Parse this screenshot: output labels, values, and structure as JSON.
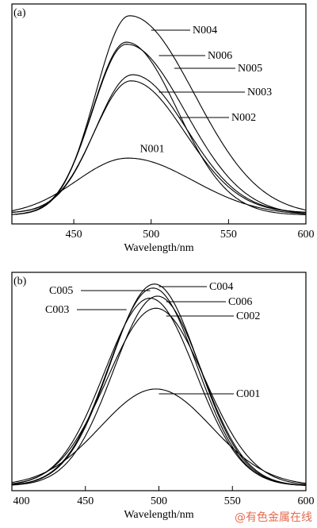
{
  "chart_data": [
    {
      "type": "line",
      "panel_label": "(a)",
      "xlabel": "Wavelength/nm",
      "ylabel": "",
      "xlim": [
        410,
        600
      ],
      "ylim": [
        0,
        1.05
      ],
      "xticks": [
        450,
        500,
        550,
        600
      ],
      "grid": false,
      "legend": "none",
      "series": [
        {
          "name": "N001",
          "peak_x": 485,
          "peak_y": 0.3,
          "base_y": 0.02,
          "sigma_left": 33,
          "sigma_right": 42,
          "label_at_x": 490
        },
        {
          "name": "N002",
          "peak_x": 487,
          "peak_y": 0.68,
          "base_y": 0.03,
          "sigma_left": 24,
          "sigma_right": 35,
          "label_at_x": 518
        },
        {
          "name": "N003",
          "peak_x": 488,
          "peak_y": 0.71,
          "base_y": 0.03,
          "sigma_left": 24,
          "sigma_right": 35,
          "label_at_x": 505
        },
        {
          "name": "N004",
          "peak_x": 486,
          "peak_y": 1.0,
          "base_y": 0.02,
          "sigma_left": 22,
          "sigma_right": 42,
          "label_at_x": 500
        },
        {
          "name": "N005",
          "peak_x": 484,
          "peak_y": 0.86,
          "base_y": 0.02,
          "sigma_left": 22,
          "sigma_right": 38,
          "label_at_x": 515
        },
        {
          "name": "N006",
          "peak_x": 484,
          "peak_y": 0.87,
          "base_y": 0.02,
          "sigma_left": 22,
          "sigma_right": 33,
          "label_at_x": 505
        }
      ]
    },
    {
      "type": "line",
      "panel_label": "(b)",
      "xlabel": "Wavelength/nm",
      "ylabel": "",
      "xlim": [
        400,
        600
      ],
      "ylim": [
        0,
        1.05
      ],
      "xticks": [
        400,
        450,
        500,
        550,
        600
      ],
      "grid": false,
      "legend": "none",
      "series": [
        {
          "name": "C001",
          "peak_x": 498,
          "peak_y": 0.48,
          "base_y": 0.0,
          "sigma_left": 38,
          "sigma_right": 38,
          "label_at_x": 500,
          "label_side": "right"
        },
        {
          "name": "C002",
          "peak_x": 498,
          "peak_y": 0.88,
          "base_y": 0.0,
          "sigma_left": 33,
          "sigma_right": 33,
          "label_at_x": 505,
          "label_side": "right"
        },
        {
          "name": "C003",
          "peak_x": 494,
          "peak_y": 0.93,
          "base_y": 0.0,
          "sigma_left": 31,
          "sigma_right": 31,
          "label_at_x": 478,
          "label_side": "left"
        },
        {
          "name": "C004",
          "peak_x": 497,
          "peak_y": 1.0,
          "base_y": 0.0,
          "sigma_left": 30,
          "sigma_right": 30,
          "label_at_x": 500,
          "label_side": "right"
        },
        {
          "name": "C005",
          "peak_x": 496,
          "peak_y": 0.98,
          "base_y": 0.0,
          "sigma_left": 30,
          "sigma_right": 30,
          "label_at_x": 494,
          "label_side": "left"
        },
        {
          "name": "C006",
          "peak_x": 499,
          "peak_y": 0.94,
          "base_y": 0.0,
          "sigma_left": 30,
          "sigma_right": 30,
          "label_at_x": 505,
          "label_side": "right"
        }
      ]
    }
  ],
  "watermark": "@有色金属在线"
}
